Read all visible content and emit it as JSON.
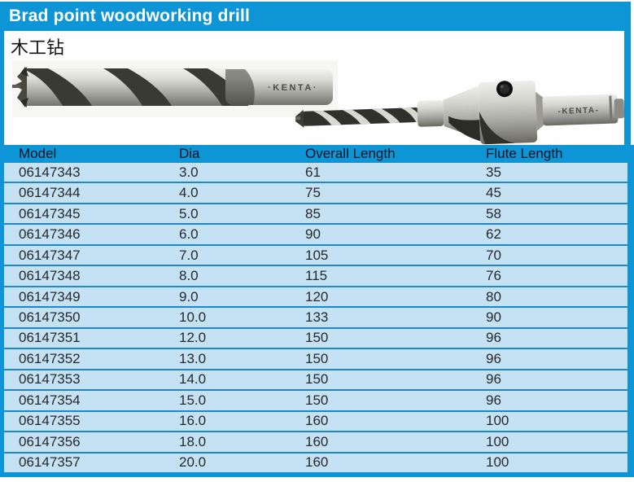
{
  "page": {
    "title": "Brad point woodworking drill",
    "subtitle_cn": "木工钻",
    "brand_mark_left": "·KENTA·",
    "brand_mark_right": "-KENTA-"
  },
  "colors": {
    "accent_blue": "#0e95d5",
    "row_light_blue": "#c4e2f4",
    "row_separator_blue": "#1f88c5",
    "header_text": "#0c1322",
    "cell_text": "#27292d"
  },
  "table": {
    "columns": [
      "Model",
      "Dia",
      "Overall Length",
      "Flute Length"
    ],
    "rows": [
      [
        "06147343",
        "3.0",
        "61",
        "35"
      ],
      [
        "06147344",
        "4.0",
        "75",
        "45"
      ],
      [
        "06147345",
        "5.0",
        "85",
        "58"
      ],
      [
        "06147346",
        "6.0",
        "90",
        "62"
      ],
      [
        "06147347",
        "7.0",
        "105",
        "70"
      ],
      [
        "06147348",
        "8.0",
        "115",
        "76"
      ],
      [
        "06147349",
        "9.0",
        "120",
        "80"
      ],
      [
        "06147350",
        "10.0",
        "133",
        "90"
      ],
      [
        "06147351",
        "12.0",
        "150",
        "96"
      ],
      [
        "06147352",
        "13.0",
        "150",
        "96"
      ],
      [
        "06147353",
        "14.0",
        "150",
        "96"
      ],
      [
        "06147354",
        "15.0",
        "150",
        "96"
      ],
      [
        "06147355",
        "16.0",
        "160",
        "100"
      ],
      [
        "06147356",
        "18.0",
        "160",
        "100"
      ],
      [
        "06147357",
        "20.0",
        "160",
        "100"
      ]
    ]
  }
}
